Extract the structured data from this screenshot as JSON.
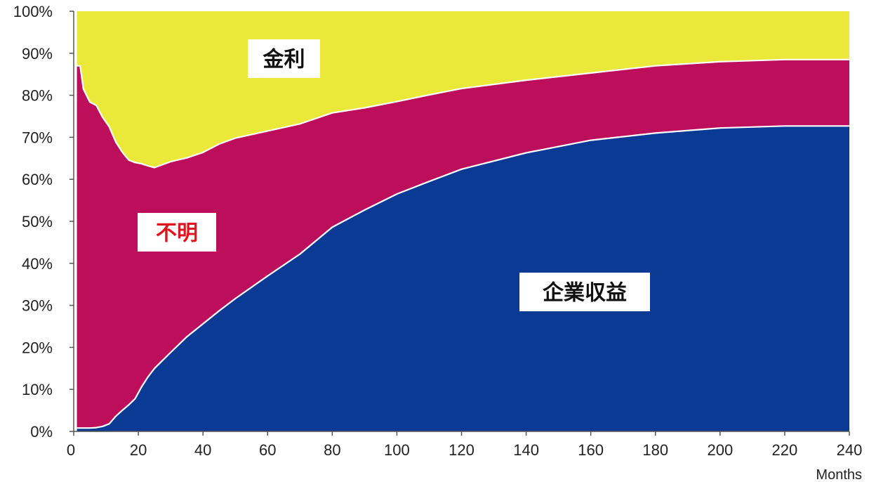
{
  "chart_data": {
    "type": "area",
    "stacked": true,
    "xlabel": "Months",
    "ylabel": "",
    "xlim": [
      0,
      240
    ],
    "ylim": [
      0,
      100
    ],
    "x_ticks": [
      0,
      20,
      40,
      60,
      80,
      100,
      120,
      140,
      160,
      180,
      200,
      220,
      240
    ],
    "y_ticks": [
      0,
      10,
      20,
      30,
      40,
      50,
      60,
      70,
      80,
      90,
      100
    ],
    "y_tick_labels": [
      "0%",
      "10%",
      "20%",
      "30%",
      "40%",
      "50%",
      "60%",
      "70%",
      "80%",
      "90%",
      "100%"
    ],
    "grid": false,
    "x": [
      1,
      2,
      3,
      5,
      7,
      9,
      11,
      13,
      15,
      17,
      19,
      21,
      23,
      25,
      30,
      35,
      40,
      45,
      50,
      60,
      70,
      80,
      90,
      100,
      110,
      120,
      140,
      160,
      180,
      200,
      220,
      240
    ],
    "series": [
      {
        "name": "企業収益",
        "color": "#0b3a94",
        "values": [
          0.8,
          0.8,
          0.8,
          0.8,
          0.9,
          1.2,
          1.8,
          3.6,
          5.0,
          6.3,
          7.8,
          10.6,
          13.0,
          15.0,
          18.8,
          22.5,
          25.6,
          28.7,
          31.6,
          37.0,
          42.2,
          48.6,
          52.7,
          56.5,
          59.5,
          62.4,
          66.3,
          69.3,
          71.0,
          72.2,
          72.7,
          72.7
        ]
      },
      {
        "name": "不明",
        "color": "#bd0e5c",
        "values": [
          86.2,
          86.2,
          80.7,
          77.6,
          76.7,
          73.5,
          70.7,
          65.3,
          61.5,
          58.3,
          56.2,
          53.1,
          50.2,
          47.8,
          45.4,
          42.6,
          40.8,
          39.7,
          38.2,
          34.5,
          31.0,
          27.2,
          24.3,
          22.0,
          20.6,
          19.2,
          17.3,
          16.0,
          16.0,
          15.8,
          15.8,
          15.8
        ]
      },
      {
        "name": "金利",
        "color": "#eae93a",
        "values": [
          13.0,
          13.0,
          18.5,
          21.6,
          22.4,
          25.3,
          27.5,
          31.1,
          33.5,
          35.4,
          36.0,
          36.3,
          36.8,
          37.2,
          35.8,
          34.9,
          33.6,
          31.6,
          30.2,
          28.5,
          26.8,
          24.2,
          23.0,
          21.5,
          19.9,
          18.4,
          16.4,
          14.7,
          13.0,
          12.0,
          11.5,
          11.5
        ]
      }
    ],
    "area_labels": [
      {
        "text": "金利",
        "text_color": "#111111"
      },
      {
        "text": "不明",
        "text_color": "#e0141e"
      },
      {
        "text": "企業収益",
        "text_color": "#111111"
      }
    ]
  }
}
